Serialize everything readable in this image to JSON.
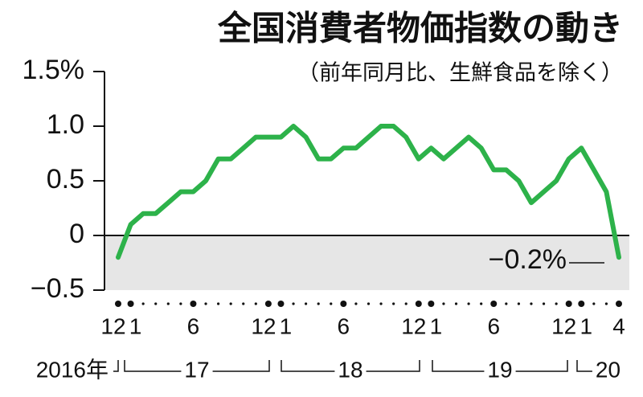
{
  "chart_data": {
    "type": "line",
    "title": "全国消費者物価指数の動き",
    "subtitle": "（前年同月比、生鮮食品を除く）",
    "categories": [
      "12",
      "1",
      null,
      null,
      null,
      null,
      "6",
      null,
      null,
      null,
      null,
      null,
      "12",
      "1",
      null,
      null,
      null,
      null,
      "6",
      null,
      null,
      null,
      null,
      null,
      "12",
      "1",
      null,
      null,
      null,
      null,
      "6",
      null,
      null,
      null,
      null,
      null,
      "12",
      "1",
      null,
      null,
      "4"
    ],
    "series": [
      {
        "color": "#2db24a",
        "values": [
          -0.2,
          0.1,
          0.2,
          0.2,
          0.3,
          0.4,
          0.4,
          0.5,
          0.7,
          0.7,
          0.8,
          0.9,
          0.9,
          0.9,
          1.0,
          0.9,
          0.7,
          0.7,
          0.8,
          0.8,
          0.9,
          1.0,
          1.0,
          0.9,
          0.7,
          0.8,
          0.7,
          0.8,
          0.9,
          0.8,
          0.6,
          0.6,
          0.5,
          0.3,
          0.4,
          0.5,
          0.7,
          0.8,
          0.6,
          0.4,
          -0.2
        ]
      }
    ],
    "year_labels": [
      "2016年",
      "17",
      "18",
      "19",
      "20"
    ],
    "annotation": "−0.2%",
    "ylim": [
      -0.5,
      1.5
    ],
    "yticks": [
      {
        "value": -0.5,
        "label": "−0.5"
      },
      0,
      0.5,
      {
        "value": 1,
        "label": "1.0"
      },
      {
        "value": 1.5,
        "label": "1.5%"
      }
    ]
  }
}
